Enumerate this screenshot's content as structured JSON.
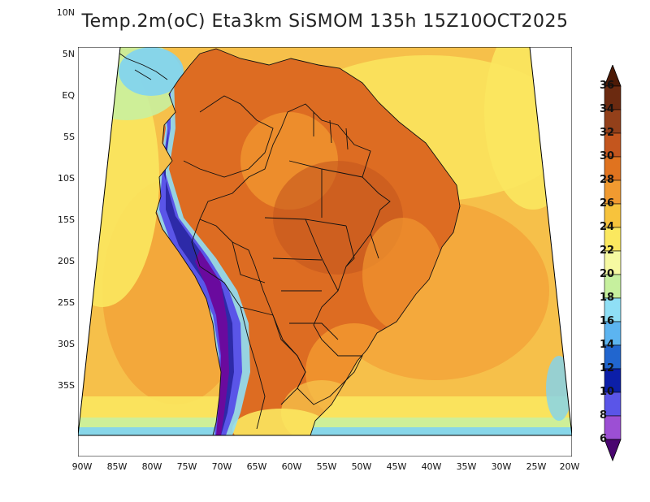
{
  "title": "Temp.2m(oC) Eta3km SiSMOM 135h 15Z10OCT2025",
  "lat_labels": [
    "10N",
    "5N",
    "EQ",
    "5S",
    "10S",
    "15S",
    "20S",
    "25S",
    "30S",
    "35S"
  ],
  "lon_labels": [
    "90W",
    "85W",
    "80W",
    "75W",
    "70W",
    "65W",
    "60W",
    "55W",
    "50W",
    "45W",
    "40W",
    "35W",
    "30W",
    "25W",
    "20W"
  ],
  "colorbar": {
    "labels": [
      "36",
      "34",
      "32",
      "30",
      "28",
      "26",
      "24",
      "22",
      "20",
      "18",
      "16",
      "14",
      "12",
      "10",
      "8",
      "6"
    ],
    "colors": [
      "#6b2a10",
      "#93401a",
      "#c4561e",
      "#e0731f",
      "#f19a30",
      "#f7c33c",
      "#fbe85f",
      "#f6f9a2",
      "#c6f09e",
      "#8fdff5",
      "#5cb4f0",
      "#2166cf",
      "#0c1fa8",
      "#5a55e8",
      "#9c4fd4",
      "#6a0a9e"
    ],
    "top_tip_color": "#4d1a06",
    "bottom_tip_color": "#4a0670"
  },
  "map_colors": {
    "ocean_warm": "#f6c04a",
    "ocean_hot": "#f3a53a",
    "ocean_mild": "#fbe75f",
    "ocean_cool": "#c9f09e",
    "ocean_cold": "#7fd3f2",
    "land_hot": "#dd6c22",
    "land_very_hot": "#c4561e",
    "land_warm": "#f1962f",
    "andes_cold": "#5a55e8",
    "andes_colder": "#2d2aa8",
    "andes_core": "#6a0a9e",
    "coast_cool": "#8fdff5",
    "border": "#111111"
  }
}
